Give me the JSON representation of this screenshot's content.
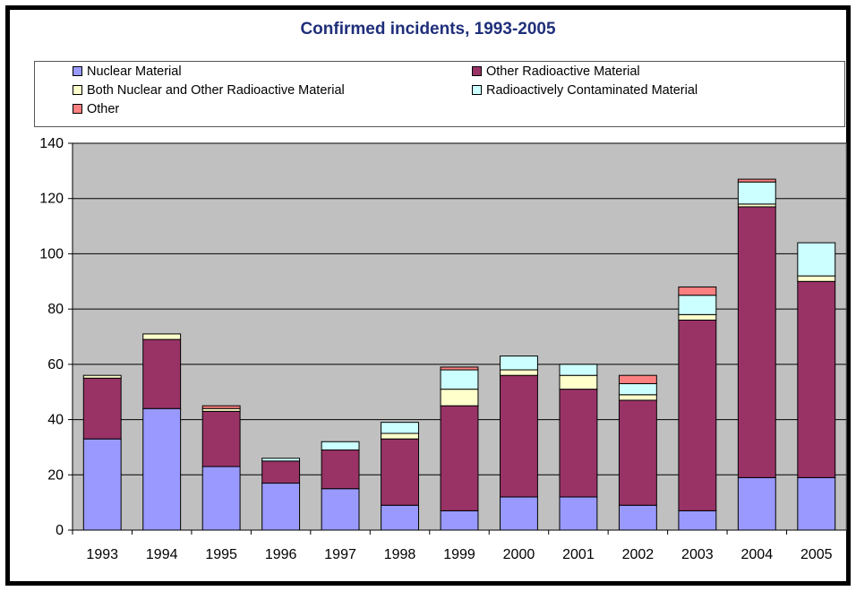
{
  "chart_data": {
    "type": "bar",
    "stacked": true,
    "title": "Confirmed incidents, 1993-2005",
    "categories": [
      "1993",
      "1994",
      "1995",
      "1996",
      "1997",
      "1998",
      "1999",
      "2000",
      "2001",
      "2002",
      "2003",
      "2004",
      "2005"
    ],
    "series": [
      {
        "name": "Nuclear Material",
        "color": "#9999ff",
        "values": [
          33,
          44,
          23,
          17,
          15,
          9,
          7,
          12,
          12,
          9,
          7,
          19,
          19
        ]
      },
      {
        "name": "Other Radioactive Material",
        "color": "#993366",
        "values": [
          22,
          25,
          20,
          8,
          14,
          24,
          38,
          44,
          39,
          38,
          69,
          98,
          71
        ]
      },
      {
        "name": "Both Nuclear and Other Radioactive Material",
        "color": "#ffffcc",
        "values": [
          1,
          2,
          1,
          0,
          0,
          2,
          6,
          2,
          5,
          2,
          2,
          1,
          2
        ]
      },
      {
        "name": "Radioactively Contaminated Material",
        "color": "#ccffff",
        "values": [
          0,
          0,
          0,
          1,
          3,
          4,
          7,
          5,
          4,
          4,
          7,
          8,
          12
        ]
      },
      {
        "name": "Other",
        "color": "#ff8080",
        "values": [
          0,
          0,
          1,
          0,
          0,
          0,
          1,
          0,
          0,
          3,
          3,
          1,
          0
        ]
      }
    ],
    "ylim": [
      0,
      140
    ],
    "yticks": [
      0,
      20,
      40,
      60,
      80,
      100,
      120,
      140
    ],
    "grid": true,
    "legend_position": "top",
    "plot_background": "#c0c0c0"
  }
}
